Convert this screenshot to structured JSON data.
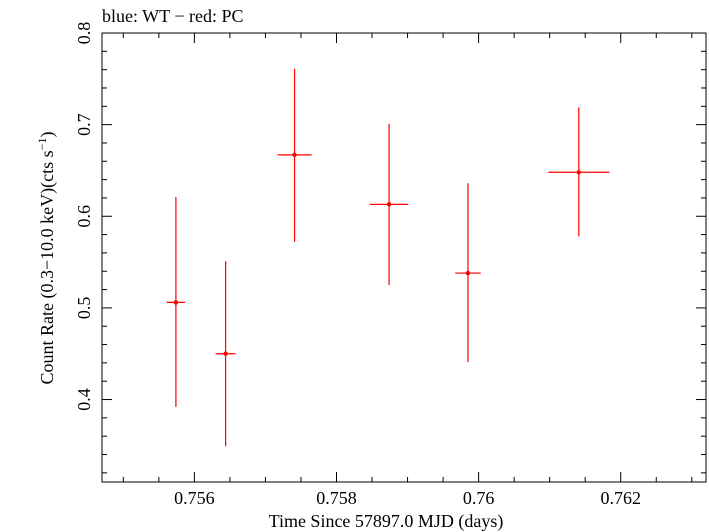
{
  "chart_data": {
    "type": "scatter",
    "title": "blue: WT − red: PC",
    "xlabel": "Time Since 57897.0 MJD (days)",
    "ylabel": "Count Rate (0.3−10.0 keV)(cts s",
    "ylabel_sup": "−1",
    "ylabel_close": ")",
    "xlim": [
      0.7547,
      0.7632
    ],
    "ylim": [
      0.31,
      0.8
    ],
    "xticks": [
      0.756,
      0.758,
      0.76,
      0.762
    ],
    "xtick_labels": [
      "0.756",
      "0.758",
      "0.76",
      "0.762"
    ],
    "yticks": [
      0.4,
      0.5,
      0.6,
      0.7,
      0.8
    ],
    "ytick_labels": [
      "0.4",
      "0.5",
      "0.6",
      "0.7",
      "0.8"
    ],
    "grid": false,
    "series": [
      {
        "color": "#ff0000",
        "points": [
          {
            "x": 0.75574,
            "y": 0.506,
            "xerr_low": 0.00013,
            "xerr_high": 0.00013,
            "yerr_low": 0.114,
            "yerr_high": 0.115
          },
          {
            "x": 0.75644,
            "y": 0.45,
            "xerr_low": 0.00014,
            "xerr_high": 0.00014,
            "yerr_low": 0.101,
            "yerr_high": 0.101
          },
          {
            "x": 0.75741,
            "y": 0.667,
            "xerr_low": 0.00024,
            "xerr_high": 0.00024,
            "yerr_low": 0.095,
            "yerr_high": 0.094
          },
          {
            "x": 0.75874,
            "y": 0.613,
            "xerr_low": 0.00027,
            "xerr_high": 0.00027,
            "yerr_low": 0.088,
            "yerr_high": 0.088
          },
          {
            "x": 0.75985,
            "y": 0.538,
            "xerr_low": 0.00018,
            "xerr_high": 0.00018,
            "yerr_low": 0.097,
            "yerr_high": 0.098
          },
          {
            "x": 0.76141,
            "y": 0.648,
            "xerr_low": 0.00043,
            "xerr_high": 0.00043,
            "yerr_low": 0.07,
            "yerr_high": 0.071
          }
        ]
      }
    ]
  }
}
